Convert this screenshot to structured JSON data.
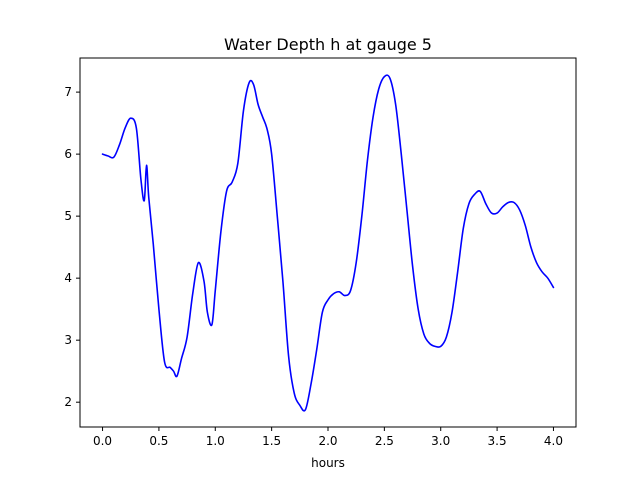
{
  "chart_data": {
    "type": "line",
    "title": "Water Depth h at gauge 5",
    "xlabel": "hours",
    "ylabel": "",
    "xlim": [
      -0.2,
      4.2
    ],
    "ylim": [
      1.6,
      7.55
    ],
    "xticks": [
      0.0,
      0.5,
      1.0,
      1.5,
      2.0,
      2.5,
      3.0,
      3.5,
      4.0
    ],
    "xtick_labels": [
      "0.0",
      "0.5",
      "1.0",
      "1.5",
      "2.0",
      "2.5",
      "3.0",
      "3.5",
      "4.0"
    ],
    "yticks": [
      2,
      3,
      4,
      5,
      6,
      7
    ],
    "ytick_labels": [
      "2",
      "3",
      "4",
      "5",
      "6",
      "7"
    ],
    "grid": false,
    "series": [
      {
        "color": "#0000ff",
        "x": [
          0.0,
          0.05,
          0.1,
          0.15,
          0.2,
          0.25,
          0.3,
          0.34,
          0.37,
          0.39,
          0.41,
          0.45,
          0.5,
          0.55,
          0.6,
          0.63,
          0.66,
          0.7,
          0.75,
          0.8,
          0.85,
          0.9,
          0.93,
          0.97,
          1.0,
          1.05,
          1.1,
          1.15,
          1.2,
          1.25,
          1.3,
          1.34,
          1.38,
          1.42,
          1.46,
          1.5,
          1.55,
          1.6,
          1.65,
          1.7,
          1.75,
          1.8,
          1.85,
          1.9,
          1.95,
          2.0,
          2.05,
          2.1,
          2.15,
          2.2,
          2.25,
          2.3,
          2.35,
          2.4,
          2.45,
          2.5,
          2.55,
          2.6,
          2.65,
          2.7,
          2.75,
          2.8,
          2.85,
          2.9,
          2.95,
          3.0,
          3.05,
          3.1,
          3.15,
          3.2,
          3.25,
          3.3,
          3.35,
          3.4,
          3.45,
          3.5,
          3.55,
          3.6,
          3.65,
          3.7,
          3.75,
          3.8,
          3.85,
          3.9,
          3.95,
          4.0
        ],
        "values": [
          6.0,
          5.97,
          5.95,
          6.15,
          6.42,
          6.58,
          6.42,
          5.6,
          5.25,
          5.82,
          5.3,
          4.55,
          3.5,
          2.65,
          2.56,
          2.5,
          2.42,
          2.7,
          3.05,
          3.75,
          4.25,
          3.95,
          3.45,
          3.25,
          3.8,
          4.75,
          5.4,
          5.55,
          5.85,
          6.7,
          7.15,
          7.12,
          6.8,
          6.6,
          6.4,
          6.0,
          5.0,
          3.95,
          2.75,
          2.15,
          1.95,
          1.88,
          2.3,
          2.85,
          3.45,
          3.65,
          3.75,
          3.78,
          3.72,
          3.8,
          4.25,
          5.0,
          5.9,
          6.6,
          7.05,
          7.25,
          7.22,
          6.8,
          6.0,
          5.1,
          4.2,
          3.5,
          3.1,
          2.95,
          2.9,
          2.9,
          3.05,
          3.45,
          4.1,
          4.8,
          5.2,
          5.35,
          5.4,
          5.2,
          5.05,
          5.05,
          5.15,
          5.22,
          5.22,
          5.1,
          4.85,
          4.5,
          4.25,
          4.1,
          4.0,
          3.85
        ]
      }
    ]
  }
}
